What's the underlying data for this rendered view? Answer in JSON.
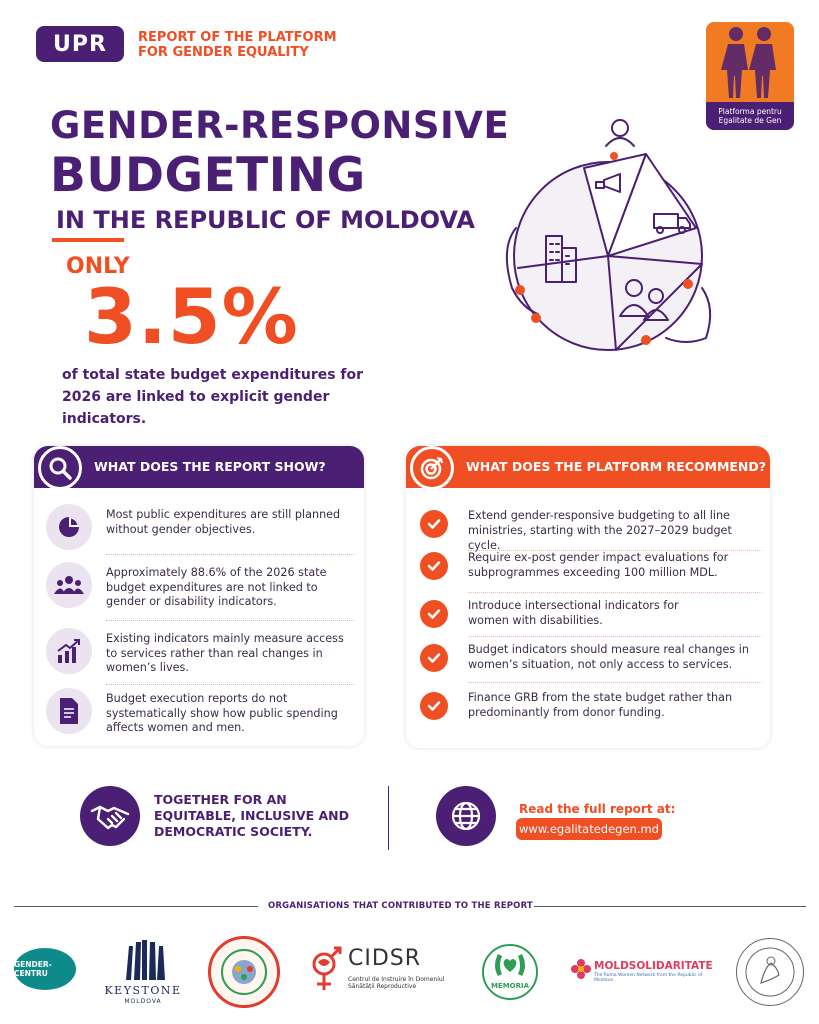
{
  "header": {
    "badge": "UPR",
    "subtitle": "REPORT OF THE PLATFORM FOR GENDER EQUALITY",
    "brand_logo_text": "Platforma pentru Egalitate de Gen"
  },
  "hero": {
    "title_line1": "GENDER-RESPONSIVE",
    "title_line2": "BUDGETING",
    "title_line3": "IN THE REPUBLIC OF MOLDOVA",
    "only": "ONLY",
    "percentage": "3.5%",
    "statement": "of total state budget expenditures for 2026 are linked to explicit gender indicators."
  },
  "report_card": {
    "title": "WHAT DOES THE REPORT SHOW?",
    "icon": "search-icon",
    "items": [
      {
        "icon": "pie-chart-icon",
        "text": "Most public expenditures are still planned without gender objectives."
      },
      {
        "icon": "people-group-icon",
        "text": "Approximately 88.6% of the 2026 state budget expenditures are not linked to gender or disability indicators."
      },
      {
        "icon": "bar-chart-trend-icon",
        "text": "Existing indicators mainly measure access to services rather than real changes in women’s lives."
      },
      {
        "icon": "document-icon",
        "text": "Budget execution reports do not systematically show how public spending affects women and men."
      }
    ]
  },
  "recommend_card": {
    "title": "WHAT DOES THE PLATFORM RECOMMEND?",
    "icon": "target-icon",
    "items": [
      {
        "text": "Extend gender-responsive budgeting to all line ministries, starting with the 2027–2029 budget cycle."
      },
      {
        "text": "Require ex-post gender impact evaluations for subprogrammes exceeding 100 million MDL."
      },
      {
        "text": "Introduce intersectional indicators for women with disabilities."
      },
      {
        "text": "Budget indicators should measure real changes in women’s situation, not only access to services."
      },
      {
        "text": "Finance GRB from the state budget rather than predominantly from donor funding."
      }
    ]
  },
  "footer": {
    "together_text": "TOGETHER FOR AN EQUITABLE, INCLUSIVE AND DEMOCRATIC SOCIETY.",
    "read_text": "Read the full report at:",
    "url": "www.egalitatedegen.md",
    "orgs_title": "ORGANISATIONS THAT CONTRIBUTED TO THE REPORT",
    "orgs": {
      "gender_centru": "GENDER-CENTRU",
      "keystone": "KEYSTONE",
      "keystone_sub": "MOLDOVA",
      "cidsr": "CIDSR",
      "cidsr_sub": "Centrul de Instruire în Domeniul Sănătății Reproductive",
      "memoria": "MEMORIA",
      "moldsolidaritate": "MOLDSOLIDARITATE",
      "moldsolidaritate_sub": "The Roma Women Network from the Republic of Moldova"
    }
  },
  "colors": {
    "purple": "#4b1f73",
    "orange": "#f04e23",
    "lavender": "#ebe3f0"
  }
}
